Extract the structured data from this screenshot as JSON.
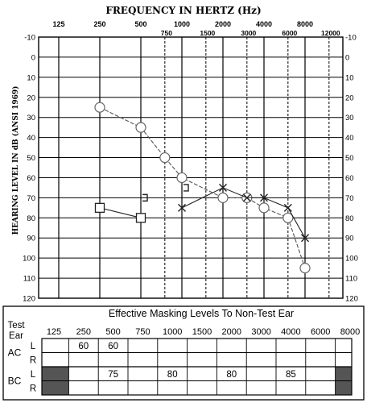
{
  "chart_data": {
    "type": "line",
    "title": "FREQUENCY IN HERTZ (Hz)",
    "ylabel": "HEARING LEVEL IN dB (ANSI 1969)",
    "y_range": [
      -10,
      120
    ],
    "y_ticks": [
      "-10",
      "0",
      "10",
      "20",
      "30",
      "40",
      "50",
      "60",
      "70",
      "80",
      "90",
      "100",
      "110",
      "120"
    ],
    "x_major_ticks": [
      "125",
      "250",
      "500",
      "1000",
      "2000",
      "4000",
      "8000"
    ],
    "x_minor_ticks": [
      "750",
      "1500",
      "3000",
      "6000",
      "12000"
    ],
    "series": [
      {
        "symbol": "circle",
        "x": [
          250,
          500,
          750,
          1000,
          2000,
          3000,
          4000,
          6000,
          8000
        ],
        "values": [
          25,
          35,
          50,
          60,
          70,
          70,
          75,
          80,
          105
        ]
      },
      {
        "symbol": "x",
        "x": [
          1000,
          2000,
          3000,
          4000,
          6000,
          8000
        ],
        "values": [
          75,
          65,
          70,
          70,
          75,
          90
        ]
      },
      {
        "symbol": "square",
        "x": [
          250,
          500
        ],
        "values": [
          75,
          80
        ]
      },
      {
        "symbol": "bracket",
        "x": [
          500,
          1000
        ],
        "values": [
          70,
          65
        ]
      }
    ]
  },
  "masking_table": {
    "title": "Effective Masking Levels To Non-Test Ear",
    "test_ear_label": [
      "Test",
      "Ear"
    ],
    "frequencies": [
      "125",
      "250",
      "500",
      "750",
      "1000",
      "1500",
      "2000",
      "3000",
      "4000",
      "6000",
      "8000"
    ],
    "rows": [
      {
        "group": "AC",
        "ear": "L",
        "values": [
          "",
          "60",
          "60",
          "",
          "",
          "",
          "",
          "",
          "",
          "",
          ""
        ]
      },
      {
        "group": "",
        "ear": "R",
        "values": [
          "",
          "",
          "",
          "",
          "",
          "",
          "",
          "",
          "",
          "",
          ""
        ]
      },
      {
        "group": "BC",
        "ear": "L",
        "values": [
          "",
          "",
          "75",
          "",
          "80",
          "",
          "80",
          "",
          "85",
          "",
          ""
        ]
      },
      {
        "group": "",
        "ear": "R",
        "values": [
          "",
          "",
          "",
          "",
          "",
          "",
          "",
          "",
          "",
          "",
          ""
        ]
      }
    ],
    "shaded_columns": [
      "125",
      "8000"
    ],
    "shaded_rows": [
      "BC"
    ]
  }
}
